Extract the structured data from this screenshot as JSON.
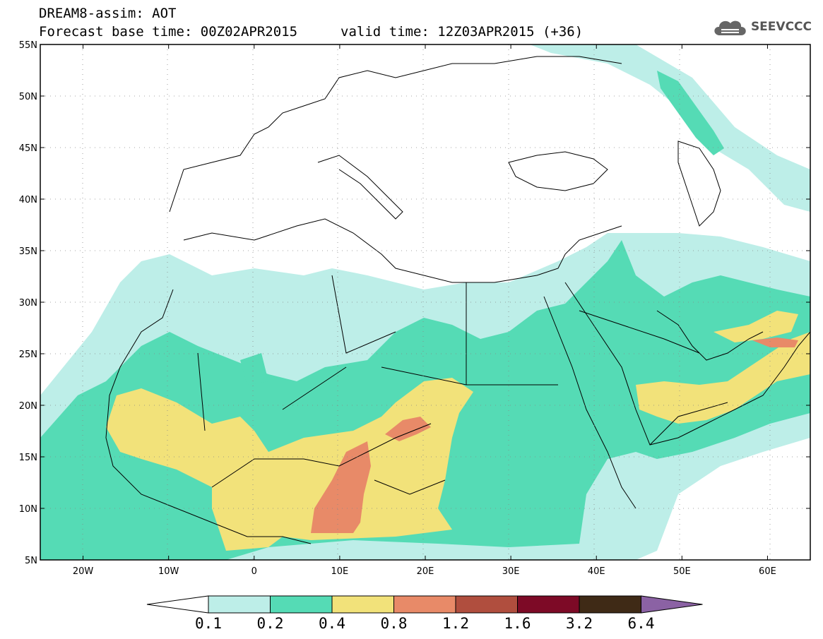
{
  "header": {
    "title": "DREAM8-assim: AOT",
    "base_time": "Forecast base time: 00Z02APR2015",
    "valid_time": "valid time: 12Z03APR2015 (+36)"
  },
  "logo": {
    "text": "SEEVCCC",
    "icon": "cloud-icon"
  },
  "map": {
    "lon_range": [
      -25,
      65
    ],
    "lat_range": [
      5,
      55
    ],
    "lat_ticks": [
      {
        "value": 55,
        "label": "55N"
      },
      {
        "value": 50,
        "label": "50N"
      },
      {
        "value": 45,
        "label": "45N"
      },
      {
        "value": 40,
        "label": "40N"
      },
      {
        "value": 35,
        "label": "35N"
      },
      {
        "value": 30,
        "label": "30N"
      },
      {
        "value": 25,
        "label": "25N"
      },
      {
        "value": 20,
        "label": "20N"
      },
      {
        "value": 15,
        "label": "15N"
      },
      {
        "value": 10,
        "label": "10N"
      },
      {
        "value": 5,
        "label": "5N"
      }
    ],
    "lon_ticks": [
      {
        "value": -20,
        "label": "20W"
      },
      {
        "value": -10,
        "label": "10W"
      },
      {
        "value": 0,
        "label": "0"
      },
      {
        "value": 10,
        "label": "10E"
      },
      {
        "value": 20,
        "label": "20E"
      },
      {
        "value": 30,
        "label": "30E"
      },
      {
        "value": 40,
        "label": "40E"
      },
      {
        "value": 50,
        "label": "50E"
      },
      {
        "value": 60,
        "label": "60E"
      }
    ],
    "grid": "dotted"
  },
  "colorbar": {
    "labels": [
      "0.1",
      "0.2",
      "0.4",
      "0.8",
      "1.2",
      "1.6",
      "3.2",
      "6.4"
    ],
    "colors": [
      "#ffffff",
      "#bdeee8",
      "#55dbb5",
      "#f2e27a",
      "#e88a68",
      "#b04e3e",
      "#7d0a26",
      "#3f2a16",
      "#8b62a4"
    ]
  }
}
